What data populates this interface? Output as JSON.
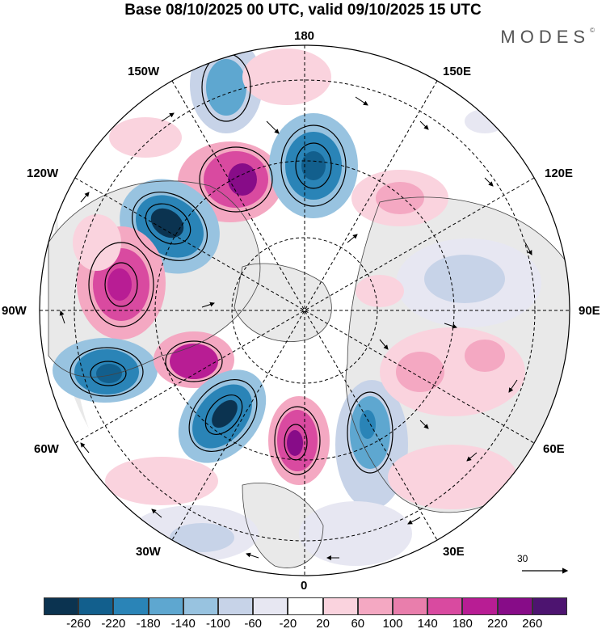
{
  "title": "Base 08/10/2025 00 UTC, valid 09/10/2025 15 UTC",
  "logo": "MODES",
  "logo_mark": "©",
  "map": {
    "projection": "north-polar-stereographic",
    "longitude_labels": {
      "top": "180",
      "top_left": "150W",
      "top_right": "150E",
      "upper_left": "120W",
      "upper_right": "120E",
      "left": "90W",
      "right": "90E",
      "lower_left": "60W",
      "lower_right": "60E",
      "bottom_left": "30W",
      "bottom_right": "30E",
      "bottom": "0"
    },
    "vector_reference": "30",
    "colors": {
      "ocean": "#ffffff",
      "land": "#e9e9e9",
      "positive_strong": "#7a1c8a",
      "negative_strong": "#1a4f78"
    }
  },
  "colorbar": {
    "ticks": [
      "-260",
      "-220",
      "-180",
      "-140",
      "-100",
      "-60",
      "-20",
      "20",
      "60",
      "100",
      "140",
      "180",
      "220",
      "260"
    ],
    "colors": [
      "#0b3350",
      "#125f8d",
      "#2a84b7",
      "#5ea7d0",
      "#98c3e0",
      "#c7d3e8",
      "#e7e7f2",
      "#ffffff",
      "#fad3de",
      "#f4a8c2",
      "#e97eac",
      "#d94aa0",
      "#b81d94",
      "#870c88",
      "#4d1470"
    ]
  }
}
